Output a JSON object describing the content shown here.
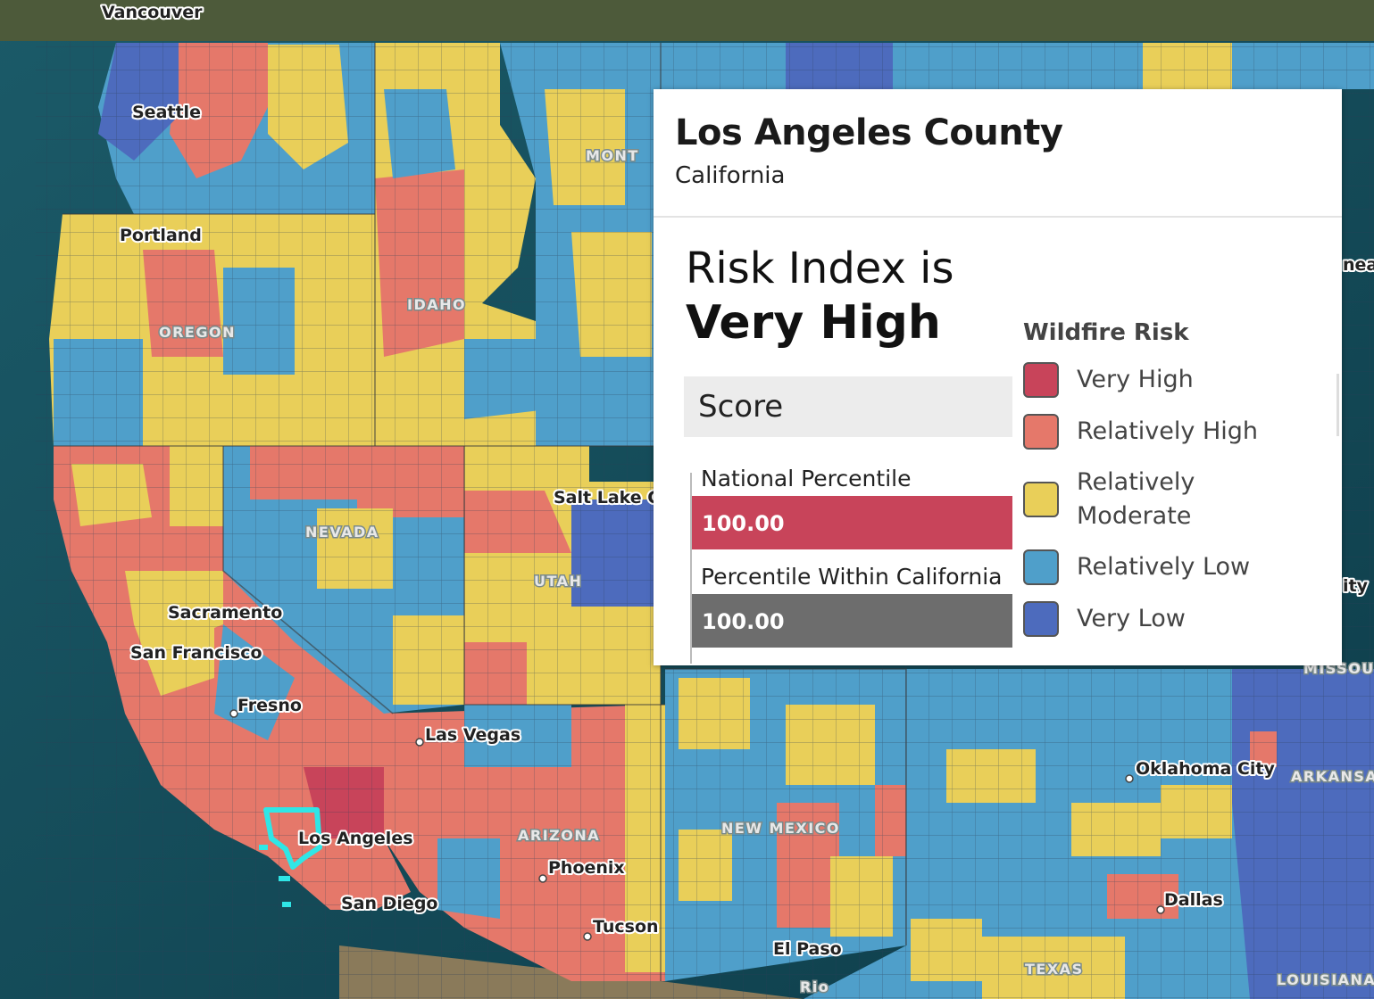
{
  "map": {
    "city_labels": [
      "Vancouver",
      "Seattle",
      "Portland",
      "Sacramento",
      "San Francisco",
      "Fresno",
      "Los Angeles",
      "San Diego",
      "Las Vegas",
      "Phoenix",
      "Tucson",
      "El Paso",
      "Salt Lake C",
      "Oklahoma City",
      "Dallas"
    ],
    "state_labels": [
      "MONT",
      "IDAHO",
      "OREGON",
      "NEVADA",
      "UTAH",
      "ARIZONA",
      "NEW MEXICO",
      "TEXAS",
      "ARKANSA",
      "LOUISIANA",
      "MISSOU"
    ],
    "edge_fragments": [
      "nea",
      "ity",
      "Rio"
    ],
    "selected_county": "Los Angeles County",
    "colors": {
      "very_high": "#c8445a",
      "relatively_high": "#e5786a",
      "relatively_moderate": "#e9cf59",
      "relatively_low": "#4f9fca",
      "very_low": "#4d6bbd",
      "selection_outline": "#2fe6e6"
    }
  },
  "popup": {
    "title": "Los Angeles County",
    "subtitle": "California",
    "risk_label": "Risk Index is",
    "risk_value": "Very High",
    "score_header": "Score",
    "national_percentile_label": "National Percentile",
    "national_percentile_value": "100.00",
    "state_percentile_label": "Percentile Within California",
    "state_percentile_value": "100.00",
    "legend": {
      "title": "Wildfire Risk",
      "items": [
        {
          "label": "Very High",
          "color": "#c8445a"
        },
        {
          "label": "Relatively High",
          "color": "#e5786a"
        },
        {
          "label": "Relatively Moderate",
          "color": "#e9cf59"
        },
        {
          "label": "Relatively Low",
          "color": "#4f9fca"
        },
        {
          "label": "Very Low",
          "color": "#4d6bbd"
        }
      ]
    }
  }
}
